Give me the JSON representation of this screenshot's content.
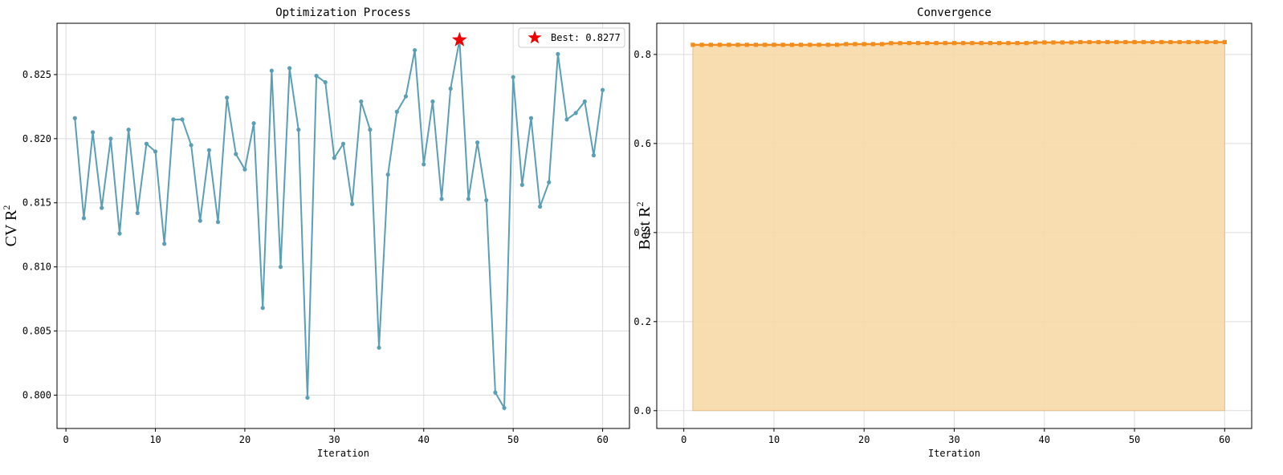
{
  "chart_data": [
    {
      "type": "line",
      "title": "Optimization Process",
      "xlabel": "Iteration",
      "ylabel_main": "CV R",
      "ylabel_sup": "2",
      "xlim": [
        -1,
        63
      ],
      "ylim": [
        0.7974,
        0.829
      ],
      "xticks": [
        0,
        10,
        20,
        30,
        40,
        50,
        60
      ],
      "yticks": [
        0.8,
        0.805,
        0.81,
        0.815,
        0.82,
        0.825
      ],
      "ytick_labels": [
        "0.800",
        "0.805",
        "0.810",
        "0.815",
        "0.820",
        "0.825"
      ],
      "grid": true,
      "series": [
        {
          "name": "CV R2",
          "color": "#5a9fb5",
          "x": [
            1,
            2,
            3,
            4,
            5,
            6,
            7,
            8,
            9,
            10,
            11,
            12,
            13,
            14,
            15,
            16,
            17,
            18,
            19,
            20,
            21,
            22,
            23,
            24,
            25,
            26,
            27,
            28,
            29,
            30,
            31,
            32,
            33,
            34,
            35,
            36,
            37,
            38,
            39,
            40,
            41,
            42,
            43,
            44,
            45,
            46,
            47,
            48,
            49,
            50,
            51,
            52,
            53,
            54,
            55,
            56,
            57,
            58,
            59,
            60
          ],
          "values": [
            0.8216,
            0.8138,
            0.8205,
            0.8146,
            0.82,
            0.8126,
            0.8207,
            0.8142,
            0.8196,
            0.819,
            0.8118,
            0.8215,
            0.8215,
            0.8195,
            0.8136,
            0.8191,
            0.8135,
            0.8232,
            0.8188,
            0.8176,
            0.8212,
            0.8068,
            0.8253,
            0.81,
            0.8255,
            0.8207,
            0.7998,
            0.8249,
            0.8244,
            0.8185,
            0.8196,
            0.8149,
            0.8229,
            0.8207,
            0.8037,
            0.8172,
            0.8221,
            0.8233,
            0.8269,
            0.818,
            0.8229,
            0.8153,
            0.8239,
            0.8277,
            0.8153,
            0.8197,
            0.8152,
            0.8002,
            0.799,
            0.8248,
            0.8164,
            0.8216,
            0.8147,
            0.8166,
            0.8266,
            0.8215,
            0.822,
            0.8229,
            0.8187,
            0.8238
          ]
        }
      ],
      "best": {
        "x": 44,
        "y": 0.8277,
        "color": "#ee0000"
      },
      "legend": {
        "label": "Best: 0.8277",
        "placement": "top-right"
      }
    },
    {
      "type": "area",
      "title": "Convergence",
      "xlabel": "Iteration",
      "ylabel_main": "Best R",
      "ylabel_sup": "2",
      "xlim": [
        -3,
        63
      ],
      "ylim": [
        -0.04,
        0.87
      ],
      "xticks": [
        0,
        10,
        20,
        30,
        40,
        50,
        60
      ],
      "yticks": [
        0.0,
        0.2,
        0.4,
        0.6,
        0.8
      ],
      "ytick_labels": [
        "0.0",
        "0.2",
        "0.4",
        "0.6",
        "0.8"
      ],
      "grid": true,
      "series": [
        {
          "name": "Best R2",
          "color": "#f28c1c",
          "fill_color": "#f7d9a8",
          "x": [
            1,
            2,
            3,
            4,
            5,
            6,
            7,
            8,
            9,
            10,
            11,
            12,
            13,
            14,
            15,
            16,
            17,
            18,
            19,
            20,
            21,
            22,
            23,
            24,
            25,
            26,
            27,
            28,
            29,
            30,
            31,
            32,
            33,
            34,
            35,
            36,
            37,
            38,
            39,
            40,
            41,
            42,
            43,
            44,
            45,
            46,
            47,
            48,
            49,
            50,
            51,
            52,
            53,
            54,
            55,
            56,
            57,
            58,
            59,
            60
          ],
          "values": [
            0.8216,
            0.8216,
            0.8216,
            0.8216,
            0.8216,
            0.8216,
            0.8216,
            0.8216,
            0.8216,
            0.8216,
            0.8216,
            0.8216,
            0.8216,
            0.8216,
            0.8216,
            0.8216,
            0.8216,
            0.8232,
            0.8232,
            0.8232,
            0.8232,
            0.8232,
            0.8253,
            0.8253,
            0.8255,
            0.8255,
            0.8255,
            0.8255,
            0.8255,
            0.8255,
            0.8255,
            0.8255,
            0.8255,
            0.8255,
            0.8255,
            0.8255,
            0.8255,
            0.8255,
            0.8269,
            0.8269,
            0.8269,
            0.8269,
            0.8269,
            0.8277,
            0.8277,
            0.8277,
            0.8277,
            0.8277,
            0.8277,
            0.8277,
            0.8277,
            0.8277,
            0.8277,
            0.8277,
            0.8277,
            0.8277,
            0.8277,
            0.8277,
            0.8277,
            0.8277
          ]
        }
      ]
    }
  ]
}
